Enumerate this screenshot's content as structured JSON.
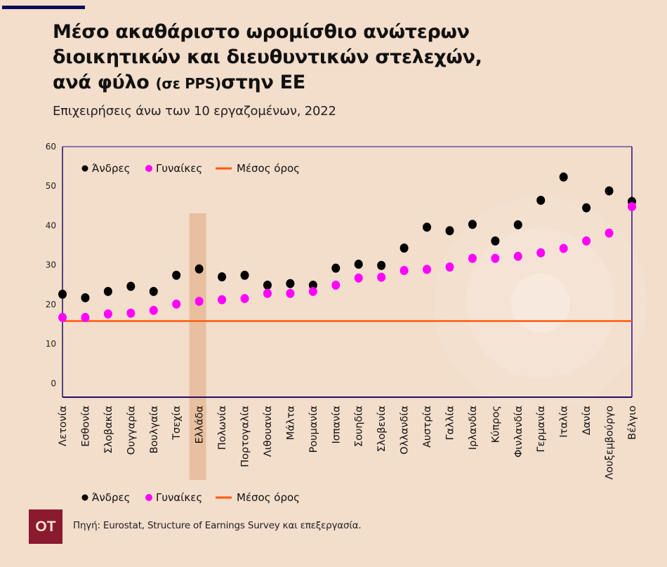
{
  "header": {
    "title_line1": "Μέσο ακαθάριστο ωρομίσθιο ανώτερων",
    "title_line2": "διοικητικών και διευθυντικών στελεχών,",
    "title_line3a": "ανά φύλο ",
    "title_line3b": "(σε PPS)",
    "title_line3c": "στην ΕΕ",
    "subtitle": "Επιχειρήσεις άνω των 10 εργαζομένων, 2022"
  },
  "footer": {
    "logo": "OT",
    "source": "Πηγή: Eurostat, Structure of Earnings Survey και επεξεργασία."
  },
  "colors": {
    "men": "#000000",
    "women": "#ff00ff",
    "mean": "#ff5a0a",
    "highlight": "#e8c0a0",
    "frame": "#1e1066",
    "logo_bg": "#8a1a30",
    "accent_bar": "#0d0a5a"
  },
  "chart_data": {
    "type": "scatter",
    "title": "Μέσο ακαθάριστο ωρομίσθιο ανώτερων διοικητικών και διευθυντικών στελεχών, ανά φύλο (σε PPS) στην ΕΕ",
    "subtitle": "Επιχειρήσεις άνω των 10 εργαζομένων, 2022",
    "xlabel": "",
    "ylabel": "",
    "ylim": [
      -3.5,
      60
    ],
    "yticks": [
      0,
      10,
      20,
      30,
      40,
      50,
      60
    ],
    "grid": false,
    "highlight_category": "Ελλάδα",
    "categories": [
      "Λετονία",
      "Εσθονία",
      "Σλοβακία",
      "Ουγγαρία",
      "Βουλγαία",
      "Τσεχία",
      "Ελλάδα",
      "Πολωνία",
      "Πορτογαλία",
      "Λιθουανία",
      "Μάλτα",
      "Ρουμανία",
      "Ισπανία",
      "Σουηδία",
      "Σλοβενία",
      "Ολλανδία",
      "Αυστρία",
      "Γαλλία",
      "Ιρλανδία",
      "Κύπρος",
      "Φινλανδία",
      "Γερμανία",
      "Ιταλία",
      "Δανία",
      "Λουξεμβούργο",
      "Βέλγιο"
    ],
    "series": [
      {
        "name": "Άνδρες",
        "marker": "dot",
        "values": [
          22.6,
          21.7,
          23.3,
          24.6,
          23.3,
          27.4,
          29.0,
          27.0,
          27.4,
          24.9,
          25.3,
          24.9,
          29.2,
          30.2,
          29.9,
          34.3,
          39.6,
          38.7,
          40.3,
          36.1,
          40.2,
          46.4,
          52.3,
          44.5,
          48.8,
          46.1
        ]
      },
      {
        "name": "Γυναίκες",
        "marker": "dot",
        "values": [
          16.7,
          16.7,
          17.6,
          17.8,
          18.5,
          20.1,
          20.8,
          21.2,
          21.5,
          22.8,
          22.8,
          23.3,
          24.9,
          26.7,
          26.9,
          28.6,
          28.9,
          29.5,
          31.7,
          31.7,
          32.2,
          33.1,
          34.2,
          36.1,
          38.1,
          44.8
        ]
      },
      {
        "name": "Μέσος όρος",
        "marker": "line",
        "value": 15.8
      }
    ],
    "legend": {
      "position": "top-left",
      "duplicate_position": "bottom",
      "entries": [
        "Άνδρες",
        "Γυναίκες",
        "Μέσος όρος"
      ]
    }
  }
}
